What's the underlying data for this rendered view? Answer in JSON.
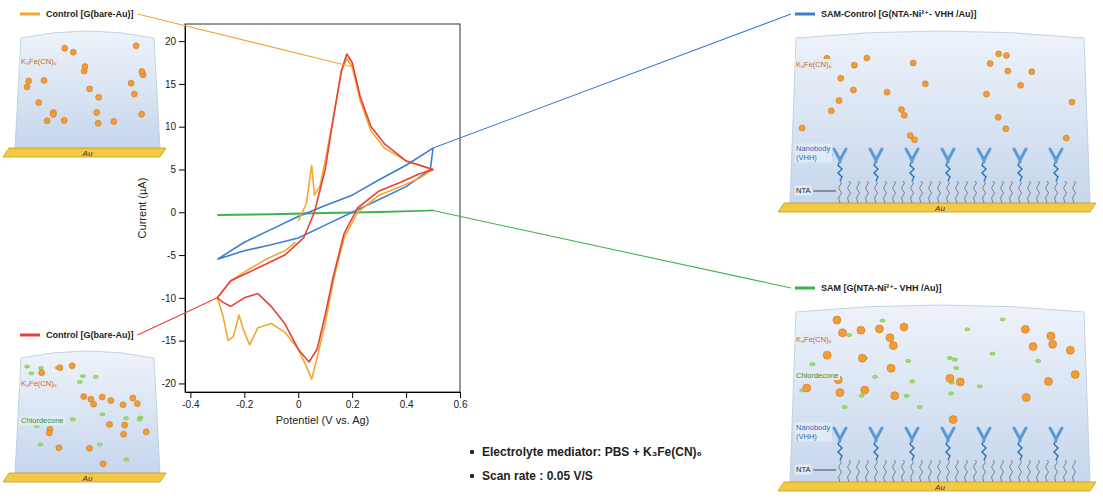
{
  "chart_data": {
    "type": "line",
    "x_label": "Potentiel (V vs. Ag)",
    "y_label": "Current (µA)",
    "xlim": [
      -0.42,
      0.6
    ],
    "ylim": [
      -21,
      22
    ],
    "xticks": [
      -0.4,
      -0.2,
      0,
      0.2,
      0.4,
      0.6
    ],
    "yticks": [
      -20,
      -15,
      -10,
      -5,
      0,
      5,
      10,
      15,
      20
    ],
    "series": [
      {
        "name": "Control [G(bare-Au)]",
        "color": "#f0a830",
        "x": [
          0,
          0.03,
          0.05,
          0.06,
          0.08,
          0.1,
          0.13,
          0.16,
          0.18,
          0.2,
          0.23,
          0.27,
          0.32,
          0.4,
          0.5,
          0.45,
          0.38,
          0.3,
          0.22,
          0.17,
          0.13,
          0.1,
          0.07,
          0.05,
          0.03,
          0,
          -0.05,
          -0.1,
          -0.15,
          -0.18,
          -0.2,
          -0.22,
          -0.24,
          -0.26,
          -0.28,
          -0.3,
          -0.25,
          -0.2,
          -0.12,
          -0.05,
          -0.01
        ],
        "values": [
          -1,
          1,
          5.5,
          2,
          3,
          6,
          11,
          16.5,
          18,
          17,
          13,
          9.5,
          7.5,
          6,
          5,
          4,
          3,
          2,
          0,
          -3,
          -8,
          -13,
          -17,
          -19.5,
          -18,
          -16,
          -14,
          -13,
          -13.5,
          -15.5,
          -14,
          -12,
          -14.5,
          -15,
          -12,
          -10,
          -8,
          -7,
          -5.5,
          -4.5,
          -3.5
        ]
      },
      {
        "name": "Control [G(bare-Au)]",
        "color": "#e8403a",
        "x": [
          -0.3,
          -0.25,
          -0.15,
          -0.05,
          0.02,
          0.06,
          0.1,
          0.13,
          0.16,
          0.18,
          0.2,
          0.23,
          0.27,
          0.32,
          0.4,
          0.5,
          0.45,
          0.38,
          0.3,
          0.22,
          0.17,
          0.13,
          0.1,
          0.07,
          0.04,
          0,
          -0.05,
          -0.1,
          -0.15,
          -0.2,
          -0.25,
          -0.28,
          -0.3
        ],
        "values": [
          -10,
          -8,
          -6.5,
          -5,
          -3,
          0,
          5,
          11,
          16.5,
          18.5,
          17.5,
          13.5,
          10,
          8,
          6,
          5,
          4.5,
          3.5,
          2.5,
          0.5,
          -2.5,
          -7.5,
          -12,
          -16,
          -17.5,
          -16,
          -13,
          -11,
          -9.5,
          -10,
          -11,
          -10.5,
          -10
        ]
      },
      {
        "name": "SAM-Control [G(NTA-Ni²⁺- VHH /Au)]",
        "color": "#3a7fd0",
        "x": [
          -0.3,
          -0.2,
          -0.1,
          0,
          0.1,
          0.2,
          0.3,
          0.4,
          0.5,
          0.49,
          0.4,
          0.3,
          0.2,
          0.1,
          0,
          -0.1,
          -0.2,
          -0.3
        ],
        "values": [
          -5.5,
          -3.5,
          -2,
          -0.5,
          0.8,
          2,
          3.8,
          5.5,
          7.5,
          5,
          3,
          1.5,
          0,
          -1.5,
          -3,
          -3.8,
          -4.5,
          -5.5
        ]
      },
      {
        "name": "SAM [G(NTA-Ni²⁺- VHH /Au)]",
        "color": "#3cb44b",
        "x": [
          -0.3,
          -0.1,
          0.1,
          0.3,
          0.5,
          0.3,
          0.1,
          -0.1,
          -0.3
        ],
        "values": [
          -0.3,
          -0.2,
          -0.05,
          0.05,
          0.2,
          0,
          -0.1,
          -0.25,
          -0.35
        ]
      }
    ],
    "annotations": [
      "Electrolyte mediator: PBS + K₃Fe(CN)₆",
      "Scan rate : 0.05 V/S"
    ]
  },
  "labels": {
    "mediator": "K₃Fe(CN)₆",
    "analyte": "Chlordecone",
    "nanobody": "Nanobody (VHH)",
    "linker": "NTA",
    "electrode": "Au"
  }
}
